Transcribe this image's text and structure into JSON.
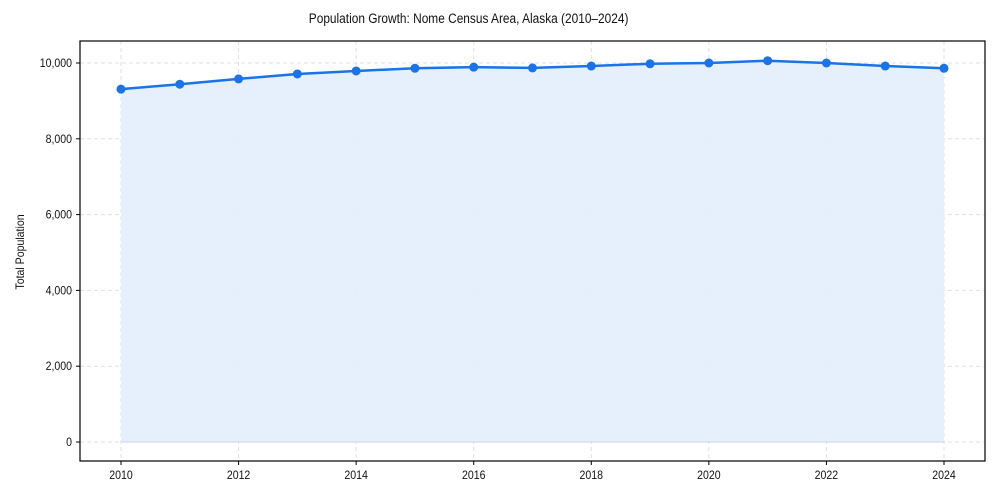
{
  "chart_data": {
    "type": "area",
    "title": "Population Growth: Nome Census Area, Alaska (2010–2024)",
    "xlabel": "",
    "ylabel": "Total Population",
    "x": [
      2010,
      2011,
      2012,
      2013,
      2014,
      2015,
      2016,
      2017,
      2018,
      2019,
      2020,
      2021,
      2022,
      2023,
      2024
    ],
    "series": [
      {
        "name": "Total Population",
        "values": [
          9310,
          9440,
          9580,
          9710,
          9790,
          9860,
          9890,
          9870,
          9920,
          9980,
          10000,
          10060,
          10000,
          9920,
          9860
        ],
        "line_color": "#1a73e8",
        "fill_color": "#e3eefd"
      }
    ],
    "xticks": [
      "2010",
      "2012",
      "2014",
      "2016",
      "2018",
      "2020",
      "2022",
      "2024"
    ],
    "yticks": [
      "0",
      "2,000",
      "4,000",
      "6,000",
      "8,000",
      "10,000"
    ],
    "ylim": [
      -500,
      10600
    ],
    "xlim": [
      2009.3,
      2024.7
    ],
    "grid": true,
    "legend": null
  }
}
